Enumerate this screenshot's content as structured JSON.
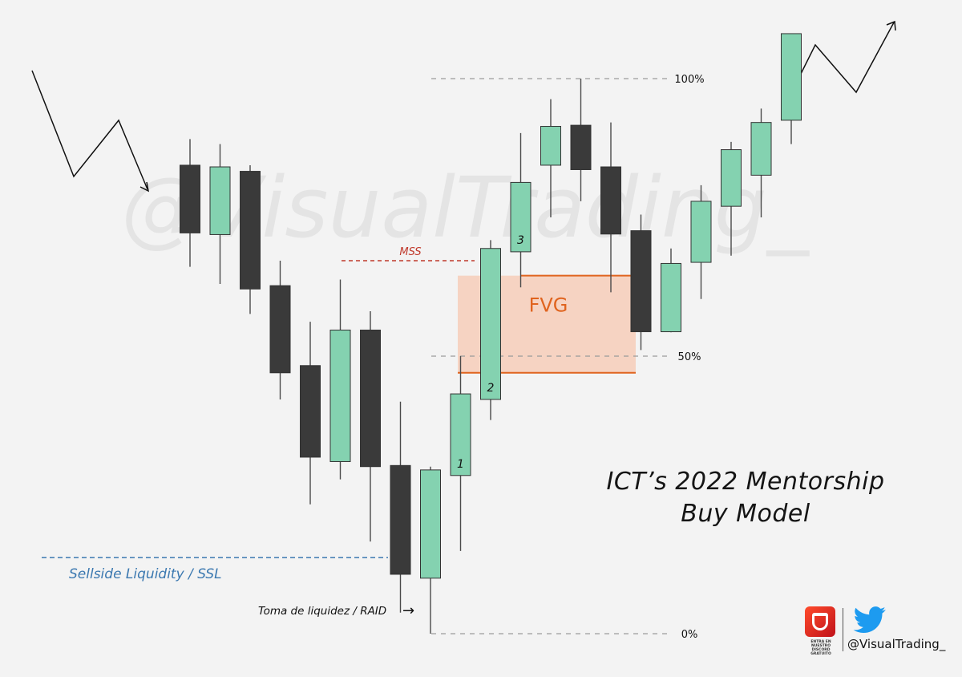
{
  "chart_data": {
    "type": "candlestick",
    "title_lines": [
      "ICT’s 2022 Mentorship",
      "Buy Model"
    ],
    "watermark": "@VisualTrading_",
    "price_range": [
      0,
      100
    ],
    "candles": [
      {
        "dir": "down",
        "open": 84.4,
        "close": 72.2,
        "high": 89.1,
        "low": 66.1
      },
      {
        "dir": "up",
        "open": 71.9,
        "close": 84.1,
        "high": 88.2,
        "low": 63.0
      },
      {
        "dir": "down",
        "open": 83.3,
        "close": 62.1,
        "high": 84.4,
        "low": 57.6
      },
      {
        "dir": "down",
        "open": 62.7,
        "close": 47.0,
        "high": 67.2,
        "low": 42.2
      },
      {
        "dir": "down",
        "open": 48.3,
        "close": 31.8,
        "high": 56.2,
        "low": 23.3
      },
      {
        "dir": "up",
        "open": 31.0,
        "close": 54.7,
        "high": 63.8,
        "low": 27.8
      },
      {
        "dir": "down",
        "open": 54.7,
        "close": 30.1,
        "high": 58.1,
        "low": 16.6
      },
      {
        "dir": "down",
        "open": 30.3,
        "close": 10.7,
        "high": 41.8,
        "low": 3.8
      },
      {
        "dir": "up",
        "open": 10.0,
        "close": 29.5,
        "high": 30.1,
        "low": 0.0
      },
      {
        "dir": "up",
        "open": 28.5,
        "close": 43.2,
        "high": 50.0,
        "low": 14.9
      },
      {
        "dir": "up",
        "open": 42.2,
        "close": 69.4,
        "high": 70.9,
        "low": 38.5
      },
      {
        "dir": "up",
        "open": 68.8,
        "close": 81.3,
        "high": 90.2,
        "low": 62.4
      },
      {
        "dir": "up",
        "open": 84.4,
        "close": 91.4,
        "high": 96.3,
        "low": 75.0
      },
      {
        "dir": "down",
        "open": 91.6,
        "close": 83.6,
        "high": 100.0,
        "low": 77.9
      },
      {
        "dir": "down",
        "open": 84.1,
        "close": 72.0,
        "high": 92.1,
        "low": 61.5
      },
      {
        "dir": "down",
        "open": 72.6,
        "close": 54.4,
        "high": 75.5,
        "low": 51.1
      },
      {
        "dir": "up",
        "open": 54.4,
        "close": 66.7,
        "high": 69.4,
        "low": 54.3
      },
      {
        "dir": "up",
        "open": 66.9,
        "close": 77.9,
        "high": 80.8,
        "low": 60.3
      },
      {
        "dir": "up",
        "open": 77.0,
        "close": 87.2,
        "high": 88.6,
        "low": 68.1
      },
      {
        "dir": "up",
        "open": 82.6,
        "close": 92.1,
        "high": 94.6,
        "low": 75.0
      },
      {
        "dir": "up",
        "open": 92.5,
        "close": 108.1,
        "high": 108.1,
        "low": 88.2
      }
    ],
    "levels": [
      {
        "label": "100%",
        "value": 100
      },
      {
        "label": "50%",
        "value": 50
      },
      {
        "label": "0%",
        "value": 0
      }
    ],
    "candle_numbers": [
      {
        "label": "1",
        "candle": 9
      },
      {
        "label": "2",
        "candle": 10
      },
      {
        "label": "3",
        "candle": 11
      }
    ],
    "annotations": {
      "mss": {
        "label": "MSS",
        "value": 67.2,
        "color": "#c0392b"
      },
      "fvg": {
        "label": "FVG",
        "top": 64.5,
        "bottom": 47.0,
        "fill": "#f6d3c2",
        "line_color": "#e0641f"
      },
      "ssl": {
        "label": "Sellside Liquidity / SSL",
        "value": 14.0,
        "color": "#3b78b0"
      },
      "raid": {
        "label": "Toma de liquidez / RAID",
        "arrow": "→"
      }
    },
    "colors": {
      "up": "#84d2b0",
      "down": "#3a3a3a",
      "wick": "#4a4a4a"
    }
  },
  "branding": {
    "discord_text": "ENTRA EN NUESTRO DISCORD GRATUITO",
    "handle": "@VisualTrading_",
    "discord_icon": "discord-logo-icon",
    "twitter_icon": "twitter-bird-icon",
    "twitter_color": "#1d9bf0"
  }
}
